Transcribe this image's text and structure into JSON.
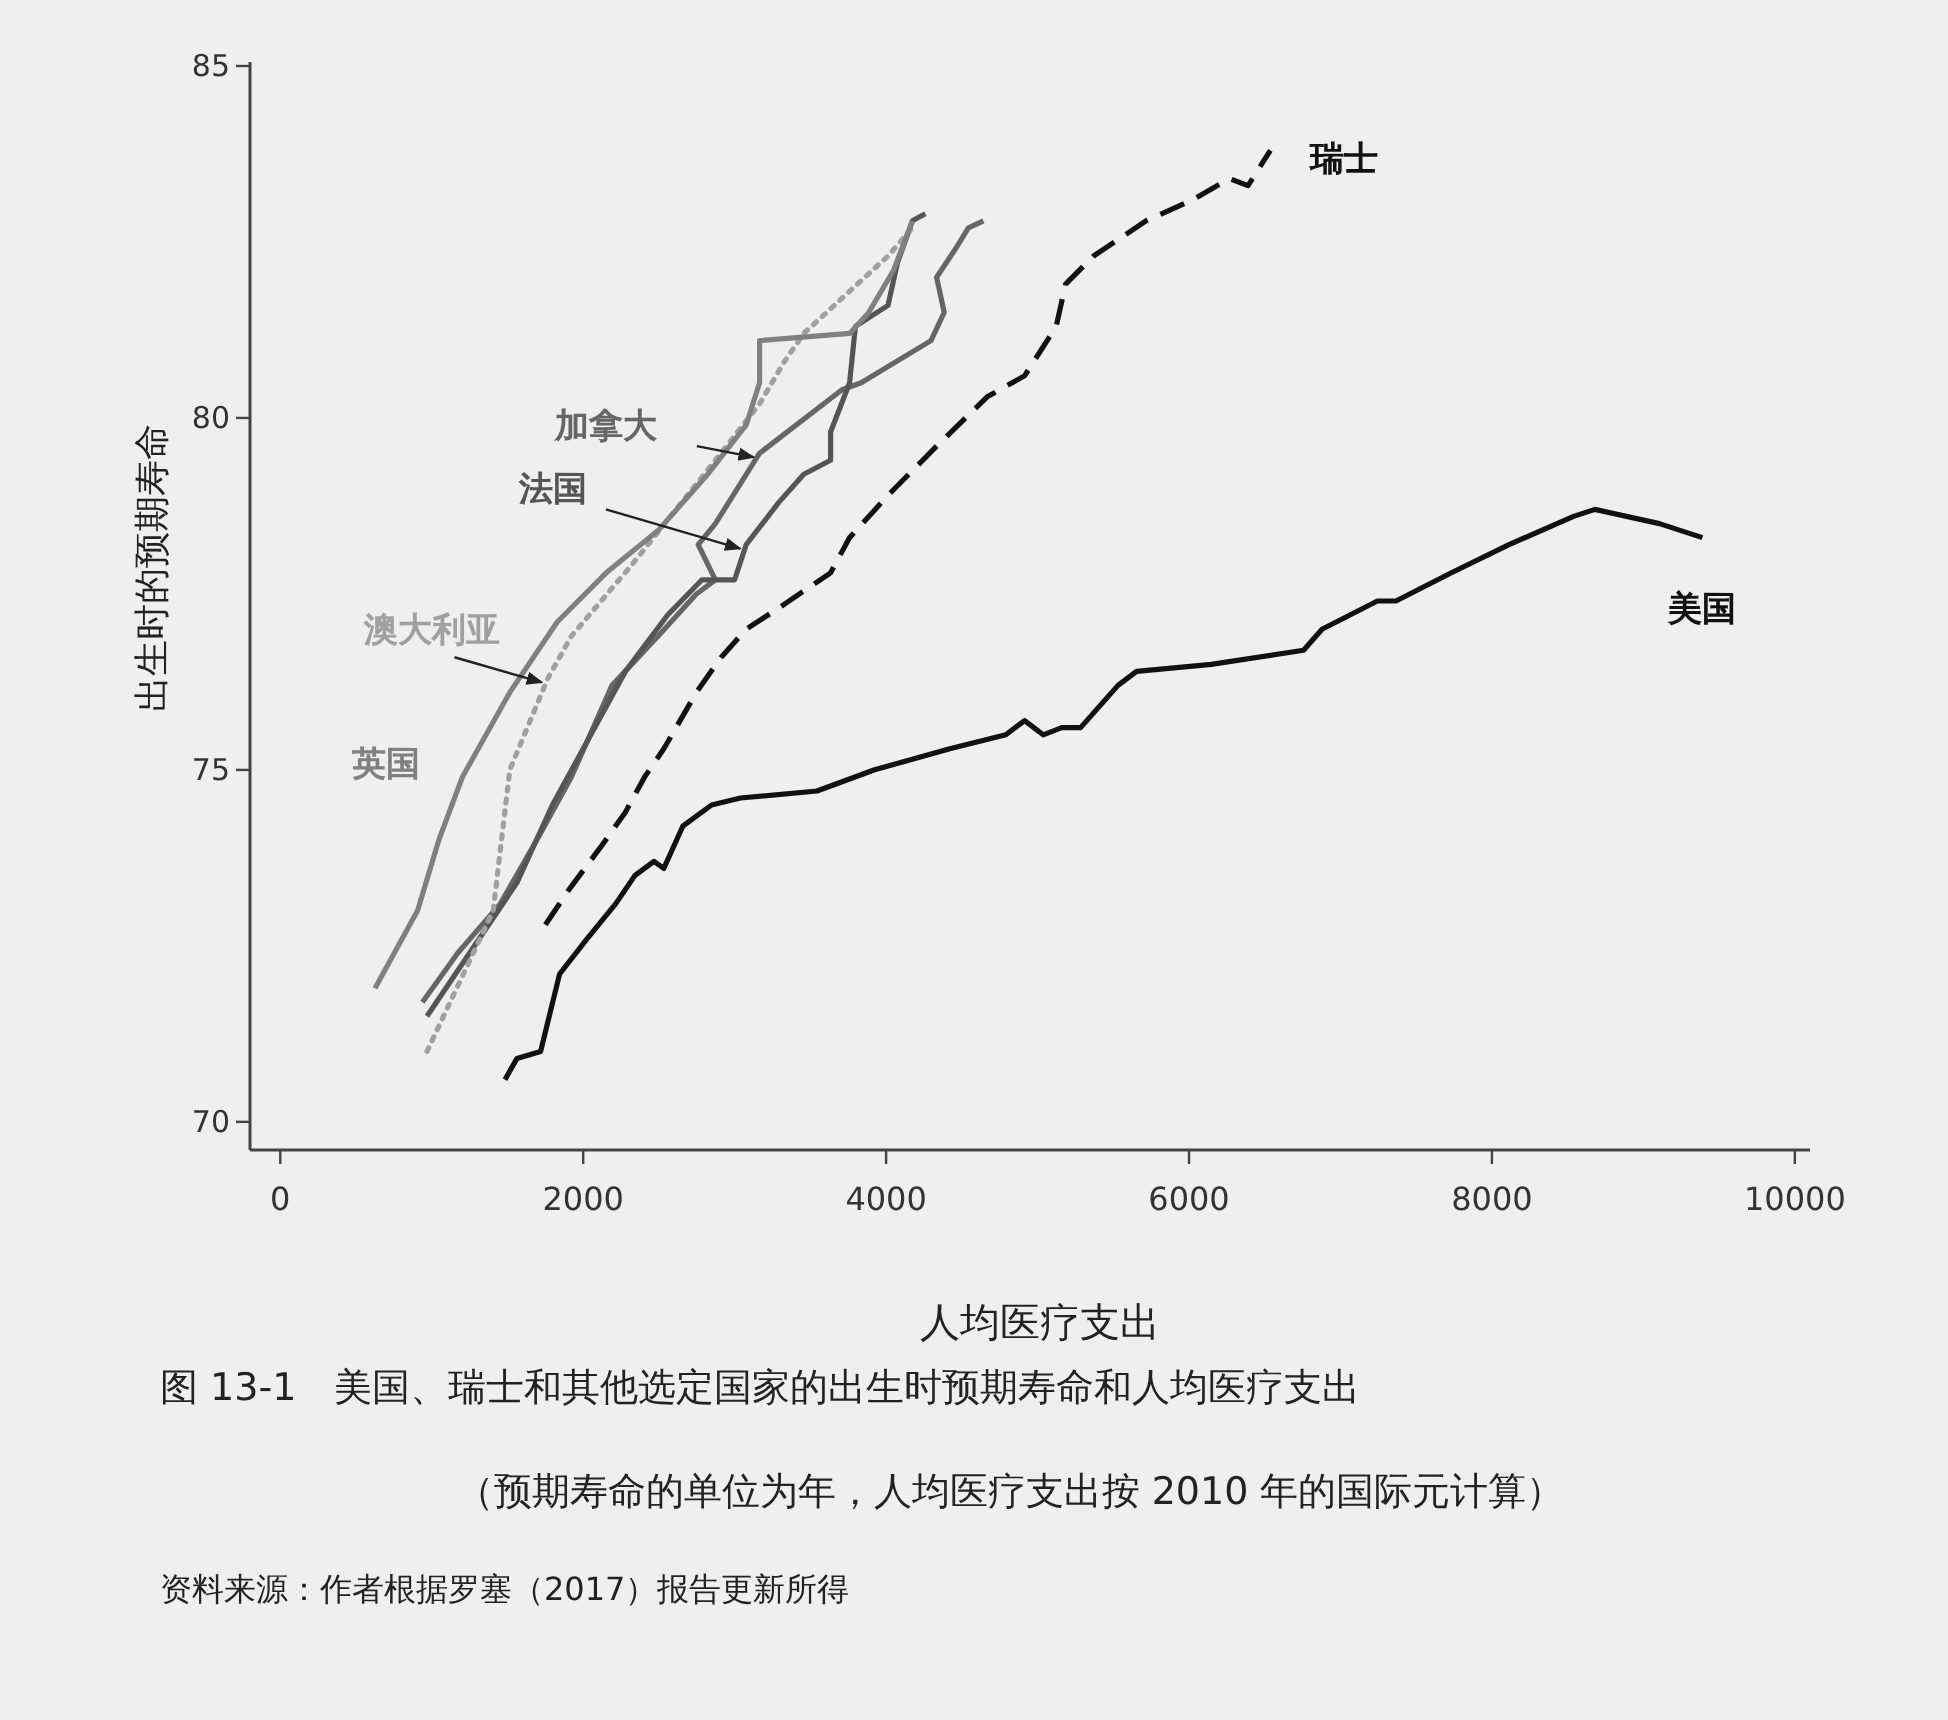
{
  "chart_data": {
    "type": "line",
    "xlabel": "人均医疗支出",
    "ylabel": "出生时的预期寿命",
    "xlim": [
      -200,
      10100
    ],
    "ylim": [
      69.6,
      85
    ],
    "xticks": [
      0,
      2000,
      4000,
      6000,
      8000,
      10000
    ],
    "yticks": [
      70,
      75,
      80,
      85
    ],
    "series": [
      {
        "name": "瑞士",
        "color": "#111111",
        "line_style": "dashed",
        "x": [
          1750,
          1906,
          2114,
          2278,
          2405,
          2532,
          2747,
          2911,
          3076,
          3291,
          3633,
          3759,
          4012,
          4333,
          4667,
          4914,
          5123,
          5185,
          5370,
          5716,
          6024,
          6268,
          6390,
          6537
        ],
        "values": [
          72.8,
          73.3,
          73.9,
          74.4,
          74.9,
          75.3,
          76.1,
          76.6,
          77.0,
          77.3,
          77.8,
          78.3,
          78.9,
          79.6,
          80.3,
          80.6,
          81.3,
          81.9,
          82.3,
          82.8,
          83.1,
          83.4,
          83.3,
          83.8
        ]
      },
      {
        "name": "美国",
        "color": "#111111",
        "line_style": "solid",
        "x": [
          1484,
          1563,
          1719,
          1844,
          2025,
          2215,
          2342,
          2468,
          2532,
          2658,
          2848,
          3038,
          3544,
          3924,
          4420,
          4790,
          4914,
          5037,
          5160,
          5284,
          5531,
          5654,
          6146,
          6756,
          6878,
          7244,
          7366,
          7732,
          8113,
          8539,
          8681,
          9106,
          9390
        ],
        "values": [
          70.6,
          70.9,
          71.0,
          72.1,
          72.6,
          73.1,
          73.5,
          73.7,
          73.6,
          74.2,
          74.5,
          74.6,
          74.7,
          75.0,
          75.3,
          75.5,
          75.7,
          75.5,
          75.6,
          75.6,
          76.2,
          76.4,
          76.5,
          76.7,
          77.0,
          77.4,
          77.4,
          77.8,
          78.2,
          78.6,
          78.7,
          78.5,
          78.3
        ]
      },
      {
        "name": "加拿大",
        "color": "#666666",
        "line_style": "solid",
        "x": [
          938,
          1172,
          1453,
          1719,
          1922,
          2190,
          2494,
          2747,
          2873,
          2759,
          2873,
          3165,
          3709,
          3835,
          4296,
          4383,
          4333,
          4457,
          4543,
          4642
        ],
        "values": [
          71.7,
          72.4,
          73.1,
          74.1,
          74.9,
          76.2,
          76.9,
          77.5,
          77.7,
          78.2,
          78.5,
          79.5,
          80.4,
          80.5,
          81.1,
          81.5,
          82.0,
          82.4,
          82.7,
          82.8
        ]
      },
      {
        "name": "法国",
        "color": "#555555",
        "line_style": "solid",
        "x": [
          969,
          1250,
          1563,
          1797,
          2025,
          2278,
          2557,
          2785,
          3000,
          3076,
          3291,
          3456,
          3633,
          3633,
          3759,
          3797,
          4012,
          4074,
          4173,
          4259
        ],
        "values": [
          71.5,
          72.4,
          73.4,
          74.5,
          75.4,
          76.4,
          77.2,
          77.7,
          77.7,
          78.2,
          78.8,
          79.2,
          79.4,
          79.8,
          80.5,
          81.3,
          81.6,
          82.2,
          82.8,
          82.9
        ]
      },
      {
        "name": "澳大利亚",
        "color": "#a0a0a0",
        "line_style": "dotted",
        "x": [
          969,
          1406,
          1516,
          1766,
          1922,
          2316,
          2873,
          3165,
          3329,
          3456,
          3709,
          4012,
          4173
        ],
        "values": [
          71.0,
          73.0,
          75.0,
          76.3,
          76.9,
          77.9,
          79.4,
          80.2,
          80.8,
          81.2,
          81.7,
          82.3,
          82.7
        ]
      },
      {
        "name": "英国",
        "color": "#808080",
        "line_style": "solid",
        "x": [
          625,
          906,
          1047,
          1203,
          1516,
          1828,
          2152,
          2494,
          2823,
          3076,
          3165,
          3165,
          3759,
          3886,
          4049,
          4173
        ],
        "values": [
          71.9,
          73.0,
          74.0,
          74.9,
          76.1,
          77.1,
          77.8,
          78.4,
          79.2,
          79.9,
          80.5,
          81.1,
          81.2,
          81.5,
          82.1,
          82.8
        ]
      }
    ],
    "annotations": [
      "图 13-1　美国、瑞士和其他选定国家的出生时预期寿命和人均医疗支出",
      "（预期寿命的单位为年，人均医疗支出按 2010 年的国际元计算）",
      "资料来源：作者根据罗塞（2017）报告更新所得"
    ]
  }
}
